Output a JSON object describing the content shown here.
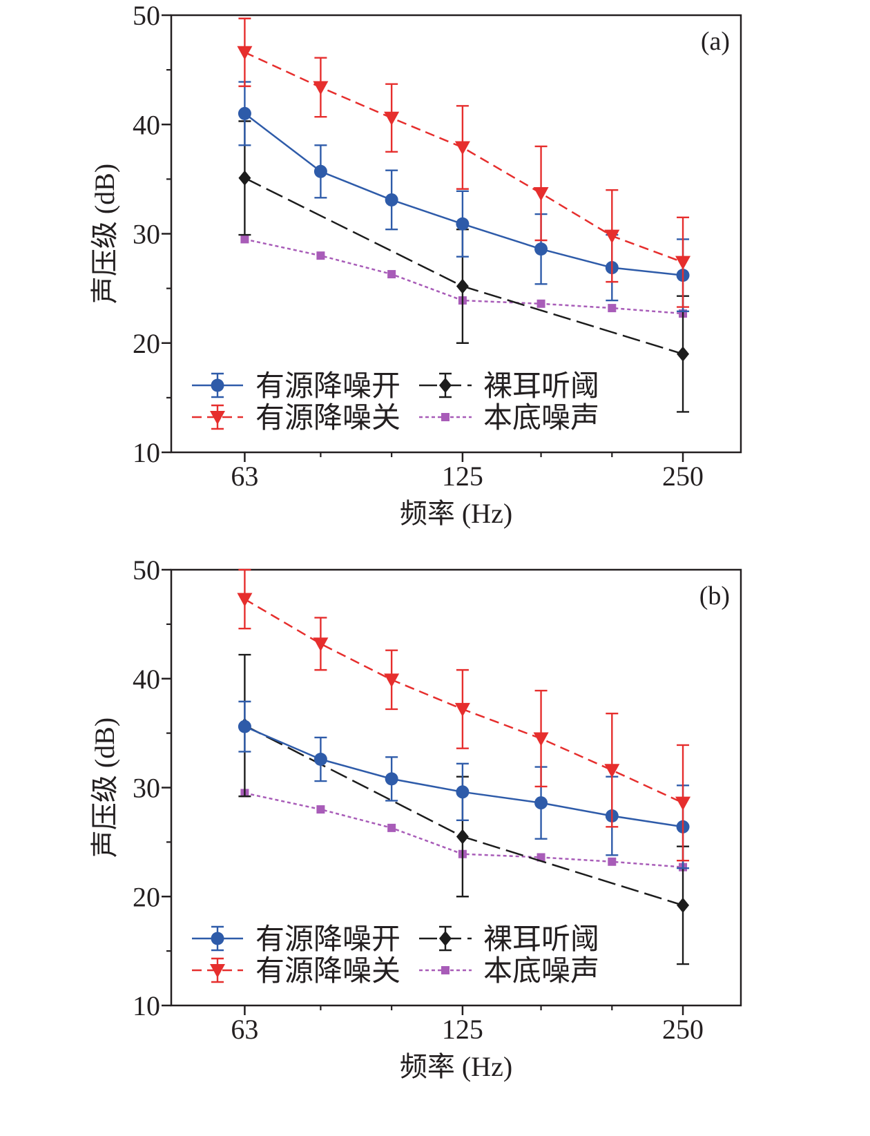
{
  "chart_data": [
    {
      "type": "line",
      "panel_label": "(a)",
      "xlabel": "频率 (Hz)",
      "ylabel": "声压级 (dB)",
      "x_scale": "log",
      "xlim": [
        50,
        300
      ],
      "ylim": [
        10,
        50
      ],
      "x_ticks": [
        63,
        125,
        250
      ],
      "y_ticks": [
        10,
        20,
        30,
        40,
        50
      ],
      "grid": false,
      "legend_position": "lower-left",
      "series": [
        {
          "name": "有源降噪开",
          "color": "#2e5ba9",
          "marker": "circle",
          "line_style": "solid",
          "x": [
            63,
            80,
            100,
            125,
            160,
            200,
            250
          ],
          "y": [
            41.0,
            35.7,
            33.1,
            30.9,
            28.6,
            26.9,
            26.2
          ],
          "err": [
            2.9,
            2.4,
            2.7,
            3.0,
            3.2,
            3.0,
            3.3
          ]
        },
        {
          "name": "有源降噪关",
          "color": "#e62e2d",
          "marker": "triangle-down",
          "line_style": "dash",
          "x": [
            63,
            80,
            100,
            125,
            160,
            200,
            250
          ],
          "y": [
            46.6,
            43.4,
            40.6,
            37.9,
            33.7,
            29.8,
            27.4
          ],
          "err": [
            3.1,
            2.7,
            3.1,
            3.8,
            4.3,
            4.2,
            4.1
          ]
        },
        {
          "name": "裸耳听阈",
          "color": "#1c1c1c",
          "marker": "diamond",
          "line_style": "long-dash",
          "x": [
            63,
            125,
            250
          ],
          "y": [
            35.1,
            25.2,
            19.0
          ],
          "err": [
            5.2,
            5.2,
            5.3
          ]
        },
        {
          "name": "本底噪声",
          "color": "#a85cb8",
          "marker": "square",
          "line_style": "short-dash",
          "x": [
            63,
            80,
            100,
            125,
            160,
            200,
            250
          ],
          "y": [
            29.5,
            28.0,
            26.3,
            23.9,
            23.6,
            23.2,
            22.7
          ]
        }
      ]
    },
    {
      "type": "line",
      "panel_label": "(b)",
      "xlabel": "频率 (Hz)",
      "ylabel": "声压级 (dB)",
      "x_scale": "log",
      "xlim": [
        50,
        300
      ],
      "ylim": [
        10,
        50
      ],
      "x_ticks": [
        63,
        125,
        250
      ],
      "y_ticks": [
        10,
        20,
        30,
        40,
        50
      ],
      "grid": false,
      "legend_position": "lower-left",
      "series": [
        {
          "name": "有源降噪开",
          "color": "#2e5ba9",
          "marker": "circle",
          "line_style": "solid",
          "x": [
            63,
            80,
            100,
            125,
            160,
            200,
            250
          ],
          "y": [
            35.6,
            32.6,
            30.8,
            29.6,
            28.6,
            27.4,
            26.4
          ],
          "err": [
            2.3,
            2.0,
            2.0,
            2.6,
            3.3,
            3.6,
            3.8
          ]
        },
        {
          "name": "有源降噪关",
          "color": "#e62e2d",
          "marker": "triangle-down",
          "line_style": "dash",
          "x": [
            63,
            80,
            100,
            125,
            160,
            200,
            250
          ],
          "y": [
            47.3,
            43.2,
            39.9,
            37.2,
            34.5,
            31.6,
            28.6
          ],
          "err": [
            2.7,
            2.4,
            2.7,
            3.6,
            4.4,
            5.2,
            5.3
          ]
        },
        {
          "name": "裸耳听阈",
          "color": "#1c1c1c",
          "marker": "diamond",
          "line_style": "long-dash",
          "x": [
            63,
            125,
            250
          ],
          "y": [
            35.7,
            25.5,
            19.2
          ],
          "err": [
            6.5,
            5.5,
            5.4
          ]
        },
        {
          "name": "本底噪声",
          "color": "#a85cb8",
          "marker": "square",
          "line_style": "short-dash",
          "x": [
            63,
            80,
            100,
            125,
            160,
            200,
            250
          ],
          "y": [
            29.5,
            28.0,
            26.3,
            23.9,
            23.6,
            23.2,
            22.7
          ]
        }
      ]
    }
  ]
}
